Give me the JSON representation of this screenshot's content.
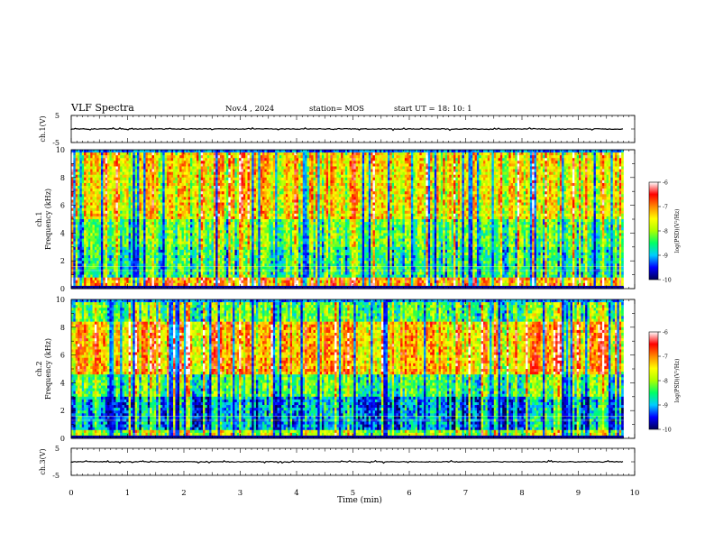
{
  "header": {
    "title": "VLF Spectra",
    "date": "Nov.4 , 2024",
    "station": "station= MOS",
    "start": "start  UT =   18: 10: 1"
  },
  "chart_data": [
    {
      "type": "line",
      "name": "ch1-voltage",
      "ylabel": "ch.1(V)",
      "ylim": [
        -5,
        5
      ],
      "yticks": [
        "5",
        "-5"
      ],
      "xlim": [
        0,
        10
      ],
      "series": [
        {
          "values_level": 0.0
        }
      ]
    },
    {
      "type": "heatmap",
      "name": "ch1-spectrogram",
      "ylabel_top": "ch.1",
      "ylabel": "Frequency (kHz)",
      "ylim": [
        0,
        10
      ],
      "yticks": [
        "0",
        "2",
        "4",
        "6",
        "8",
        "10"
      ],
      "xlim": [
        0,
        10
      ],
      "data_end_min": 9.8,
      "colorbar": {
        "label": "log(PSD)(V²/Hz)",
        "range": [
          -10,
          -6
        ],
        "ticks": [
          "-6",
          "-7",
          "-8",
          "-9",
          "-10"
        ],
        "colors": [
          "#000055",
          "#0000ff",
          "#00ccff",
          "#00ff66",
          "#aaff00",
          "#ffff00",
          "#ff8800",
          "#ff0000",
          "#ffffff"
        ]
      }
    },
    {
      "type": "heatmap",
      "name": "ch2-spectrogram",
      "ylabel_top": "ch.2",
      "ylabel": "Frequency (kHz)",
      "ylim": [
        0,
        10
      ],
      "yticks": [
        "0",
        "2",
        "4",
        "6",
        "8",
        "10"
      ],
      "xlim": [
        0,
        10
      ],
      "data_end_min": 9.8,
      "colorbar": {
        "label": "log(PSD)(V²/Hz)",
        "range": [
          -10,
          -6
        ],
        "ticks": [
          "-6",
          "-7",
          "-8",
          "-9",
          "-10"
        ],
        "colors": [
          "#000055",
          "#0000ff",
          "#00ccff",
          "#00ff66",
          "#aaff00",
          "#ffff00",
          "#ff8800",
          "#ff0000",
          "#ffffff"
        ]
      }
    },
    {
      "type": "line",
      "name": "ch3-voltage",
      "ylabel": "ch.3(V)",
      "ylim": [
        -5,
        5
      ],
      "yticks": [
        "5",
        "-5"
      ],
      "xlim": [
        0,
        10
      ],
      "series": [
        {
          "values_level": 0.0
        }
      ]
    }
  ],
  "xaxis": {
    "label": "Time (min)",
    "ticks": [
      "0",
      "1",
      "2",
      "3",
      "4",
      "5",
      "6",
      "7",
      "8",
      "9",
      "10"
    ],
    "range": [
      0,
      10
    ]
  },
  "colors": {
    "axis": "#000000",
    "background": "#ffffff"
  }
}
